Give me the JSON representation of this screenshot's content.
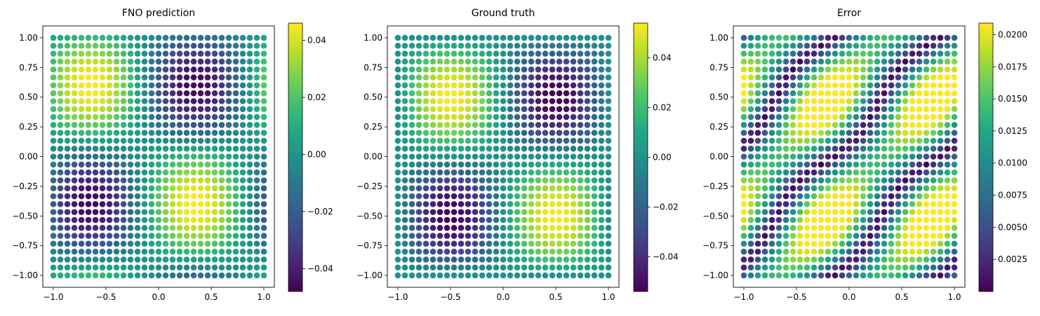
{
  "chart_data": [
    {
      "type": "scatter",
      "title": "FNO prediction",
      "field": "prediction",
      "xlim": [
        -1.1,
        1.1
      ],
      "ylim": [
        -1.1,
        1.1
      ],
      "x_ticks": [
        -1.0,
        -0.5,
        0.0,
        0.5,
        1.0
      ],
      "x_tick_labels": [
        "−1.0",
        "−0.5",
        "0.0",
        "0.5",
        "1.0"
      ],
      "y_ticks": [
        1.0,
        0.75,
        0.5,
        0.25,
        0.0,
        -0.25,
        -0.5,
        -0.75,
        -1.0
      ],
      "y_tick_labels": [
        "1.00",
        "0.75",
        "0.50",
        "0.25",
        "0.00",
        "−0.25",
        "−0.50",
        "−0.75",
        "−1.00"
      ],
      "grid_n": 31,
      "colorbar": {
        "vmin": -0.048,
        "vmax": 0.046,
        "ticks": [
          0.04,
          0.02,
          0.0,
          -0.02,
          -0.04
        ],
        "tick_labels": [
          "0.04",
          "0.02",
          "0.00",
          "−0.02",
          "−0.04"
        ],
        "colormap": "viridis"
      },
      "grid": false
    },
    {
      "type": "scatter",
      "title": "Ground truth",
      "field": "truth",
      "xlim": [
        -1.1,
        1.1
      ],
      "ylim": [
        -1.1,
        1.1
      ],
      "x_ticks": [
        -1.0,
        -0.5,
        0.0,
        0.5,
        1.0
      ],
      "x_tick_labels": [
        "−1.0",
        "−0.5",
        "0.0",
        "0.5",
        "1.0"
      ],
      "y_ticks": [
        1.0,
        0.75,
        0.5,
        0.25,
        0.0,
        -0.25,
        -0.5,
        -0.75,
        -1.0
      ],
      "y_tick_labels": [
        "1.00",
        "0.75",
        "0.50",
        "0.25",
        "0.00",
        "−0.25",
        "−0.50",
        "−0.75",
        "−1.00"
      ],
      "grid_n": 31,
      "colorbar": {
        "vmin": -0.054,
        "vmax": 0.054,
        "ticks": [
          0.04,
          0.02,
          0.0,
          -0.02,
          -0.04
        ],
        "tick_labels": [
          "0.04",
          "0.02",
          "0.00",
          "−0.02",
          "−0.04"
        ],
        "colormap": "viridis"
      },
      "grid": false
    },
    {
      "type": "scatter",
      "title": "Error",
      "field": "error",
      "xlim": [
        -1.1,
        1.1
      ],
      "ylim": [
        -1.1,
        1.1
      ],
      "x_ticks": [
        -1.0,
        -0.5,
        0.0,
        0.5,
        1.0
      ],
      "x_tick_labels": [
        "−1.0",
        "−0.5",
        "0.0",
        "0.5",
        "1.0"
      ],
      "y_ticks": [
        1.0,
        0.75,
        0.5,
        0.25,
        0.0,
        -0.25,
        -0.5,
        -0.75,
        -1.0
      ],
      "y_tick_labels": [
        "1.00",
        "0.75",
        "0.50",
        "0.25",
        "0.00",
        "−0.25",
        "−0.50",
        "−0.75",
        "−1.00"
      ],
      "grid_n": 31,
      "colorbar": {
        "vmin": 0.0,
        "vmax": 0.0209,
        "ticks": [
          0.02,
          0.0175,
          0.015,
          0.0125,
          0.01,
          0.0075,
          0.005,
          0.0025
        ],
        "tick_labels": [
          "0.0200",
          "0.0175",
          "0.0150",
          "0.0125",
          "0.0100",
          "0.0075",
          "0.0050",
          "0.0025"
        ],
        "colormap": "viridis"
      },
      "grid": false
    }
  ]
}
